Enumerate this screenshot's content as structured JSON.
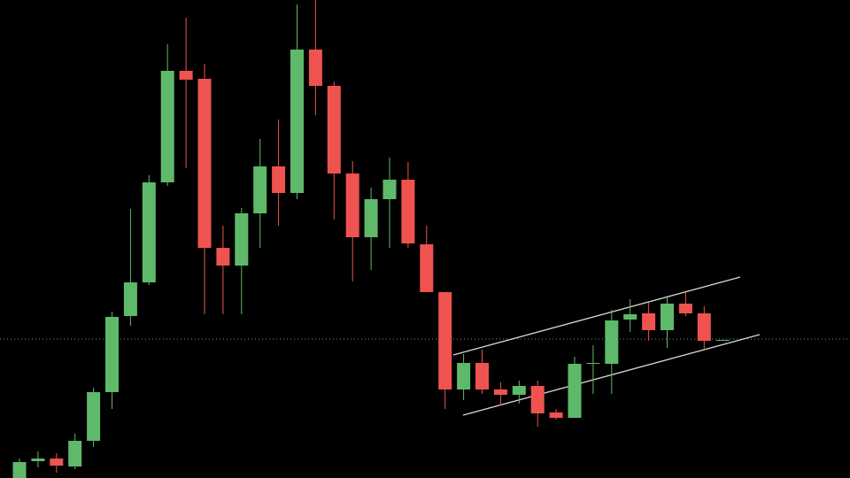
{
  "chart_data": {
    "type": "candlestick",
    "open": [
      0,
      19,
      22,
      13,
      42,
      97,
      183,
      221,
      334,
      460,
      451,
      260,
      240,
      299,
      352,
      322,
      484,
      443,
      344,
      272,
      315,
      337,
      264,
      210,
      100,
      130,
      100,
      94,
      104,
      74,
      68,
      129,
      129,
      179,
      186,
      167,
      197,
      186,
      155
    ],
    "high": [
      22,
      30,
      28,
      50,
      102,
      188,
      304,
      342,
      490,
      520,
      468,
      285,
      305,
      383,
      405,
      535,
      540,
      448,
      358,
      328,
      362,
      357,
      285,
      210,
      140,
      145,
      108,
      110,
      110,
      78,
      137,
      150,
      190,
      202,
      198,
      204,
      210,
      194,
      156
    ],
    "low": [
      0,
      12,
      6,
      10,
      35,
      78,
      172,
      218,
      330,
      350,
      185,
      185,
      185,
      260,
      285,
      315,
      410,
      292,
      222,
      235,
      260,
      260,
      210,
      78,
      88,
      95,
      82,
      84,
      58,
      66,
      68,
      95,
      95,
      165,
      155,
      147,
      183,
      145,
      155
    ],
    "close": [
      18,
      22,
      14,
      42,
      97,
      182,
      221,
      334,
      460,
      450,
      260,
      240,
      299,
      352,
      322,
      484,
      443,
      344,
      272,
      315,
      337,
      265,
      210,
      100,
      130,
      100,
      94,
      104,
      73,
      68,
      129,
      130,
      178,
      185,
      167,
      197,
      186,
      155,
      156
    ],
    "up_color": "#5fb96a",
    "down_color": "#ef5350",
    "ylim": [
      0,
      540
    ]
  }
}
